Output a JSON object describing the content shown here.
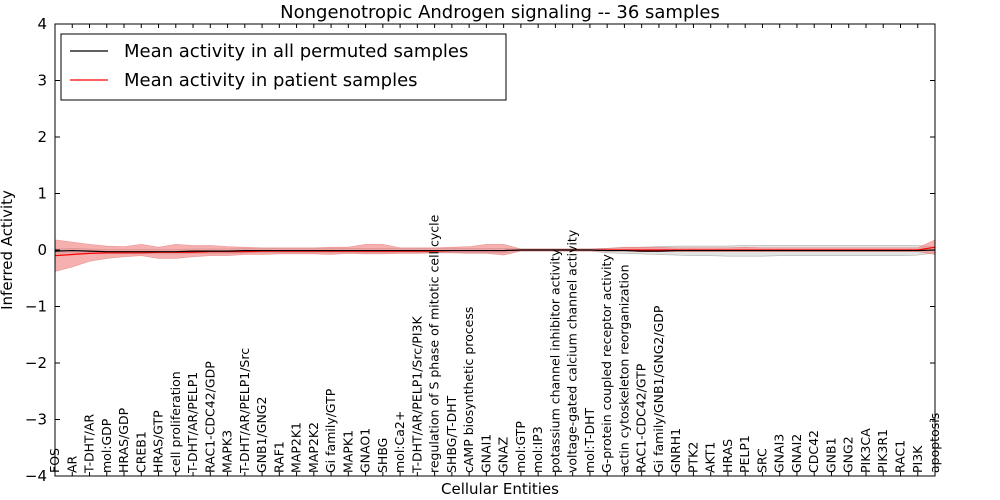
{
  "chart_data": {
    "type": "line",
    "title": "Nongenotropic Androgen signaling -- 36 samples",
    "xlabel": "Cellular Entities",
    "ylabel": "Inferred Activity",
    "ylim": [
      -4,
      4
    ],
    "yticks": [
      4,
      3,
      2,
      1,
      0,
      -1,
      -2,
      -3,
      -4
    ],
    "ytick_labels": [
      "4",
      "3",
      "2",
      "1",
      "0",
      "−1",
      "−2",
      "−3",
      "−4"
    ],
    "legend_position": "top-left",
    "categories": [
      "FOS",
      "AR",
      "T-DHT/AR",
      "mol:GDP",
      "HRAS/GDP",
      "CREB1",
      "HRAS/GTP",
      "cell proliferation",
      "T-DHT/AR/PELP1",
      "RAC1-CDC42/GDP",
      "MAPK3",
      "T-DHT/AR/PELP1/Src",
      "GNB1/GNG2",
      "RAF1",
      "MAP2K1",
      "MAP2K2",
      "Gi family/GTP",
      "MAPK1",
      "GNAO1",
      "SHBG",
      "mol:Ca2+",
      "T-DHT/AR/PELP1/Src/PI3K",
      "regulation of S phase of mitotic cell cycle",
      "SHBG/T-DHT",
      "cAMP biosynthetic process",
      "GNAI1",
      "GNAZ",
      "mol:GTP",
      "mol:IP3",
      "potassium channel inhibitor activity",
      "voltage-gated calcium channel activity",
      "mol:T-DHT",
      "G-protein coupled receptor activity",
      "actin cytoskeleton reorganization",
      "RAC1-CDC42/GTP",
      "Gi family/GNB1/GNG2/GDP",
      "GNRH1",
      "PTK2",
      "AKT1",
      "HRAS",
      "PELP1",
      "SRC",
      "GNAI3",
      "GNAI2",
      "CDC42",
      "GNB1",
      "GNG2",
      "PIK3CA",
      "PIK3R1",
      "RAC1",
      "PI3K",
      "apoptosis"
    ],
    "series": [
      {
        "name": "Mean activity in all permuted samples",
        "color": "#000000",
        "values": [
          -0.02,
          -0.01,
          -0.02,
          -0.03,
          -0.03,
          -0.03,
          -0.03,
          -0.03,
          -0.02,
          -0.02,
          -0.02,
          -0.01,
          -0.01,
          -0.01,
          -0.01,
          -0.01,
          -0.01,
          -0.01,
          -0.01,
          -0.01,
          -0.01,
          -0.01,
          -0.01,
          -0.01,
          -0.01,
          -0.01,
          -0.01,
          0.0,
          0.0,
          0.0,
          0.0,
          0.0,
          -0.01,
          -0.01,
          -0.02,
          -0.02,
          -0.01,
          -0.01,
          -0.01,
          -0.01,
          -0.01,
          -0.01,
          -0.01,
          -0.01,
          -0.01,
          -0.01,
          -0.01,
          -0.01,
          -0.01,
          -0.01,
          -0.01,
          0.0
        ],
        "band_low": [
          -0.06,
          -0.05,
          -0.06,
          -0.07,
          -0.07,
          -0.07,
          -0.07,
          -0.07,
          -0.06,
          -0.06,
          -0.06,
          -0.05,
          -0.05,
          -0.05,
          -0.05,
          -0.05,
          -0.05,
          -0.05,
          -0.05,
          -0.05,
          -0.05,
          -0.05,
          -0.05,
          -0.05,
          -0.05,
          -0.05,
          -0.05,
          -0.02,
          -0.02,
          -0.02,
          -0.02,
          -0.02,
          -0.05,
          -0.06,
          -0.07,
          -0.08,
          -0.09,
          -0.1,
          -0.1,
          -0.11,
          -0.11,
          -0.11,
          -0.1,
          -0.1,
          -0.1,
          -0.1,
          -0.1,
          -0.1,
          -0.1,
          -0.1,
          -0.09,
          -0.05
        ],
        "band_high": [
          0.02,
          0.03,
          0.02,
          0.01,
          0.01,
          0.01,
          0.01,
          0.01,
          0.02,
          0.02,
          0.02,
          0.03,
          0.03,
          0.03,
          0.03,
          0.03,
          0.03,
          0.03,
          0.03,
          0.03,
          0.03,
          0.03,
          0.03,
          0.03,
          0.03,
          0.03,
          0.03,
          0.02,
          0.02,
          0.02,
          0.02,
          0.02,
          0.03,
          0.04,
          0.05,
          0.06,
          0.07,
          0.07,
          0.07,
          0.07,
          0.08,
          0.08,
          0.08,
          0.08,
          0.08,
          0.08,
          0.08,
          0.08,
          0.08,
          0.08,
          0.08,
          0.05
        ]
      },
      {
        "name": "Mean activity in patient samples",
        "color": "#ff0000",
        "values": [
          -0.1,
          -0.08,
          -0.06,
          -0.05,
          -0.05,
          -0.05,
          -0.04,
          -0.04,
          -0.04,
          -0.03,
          -0.03,
          -0.03,
          -0.02,
          -0.02,
          -0.02,
          -0.02,
          -0.02,
          -0.02,
          -0.02,
          -0.02,
          -0.02,
          -0.02,
          -0.02,
          -0.01,
          -0.01,
          -0.01,
          -0.01,
          0.0,
          0.0,
          0.0,
          0.0,
          0.0,
          0.0,
          0.0,
          0.0,
          0.0,
          0.0,
          0.0,
          0.0,
          0.0,
          0.0,
          0.0,
          0.0,
          0.0,
          0.0,
          0.0,
          0.0,
          0.0,
          0.0,
          0.0,
          0.0,
          0.05
        ],
        "band_low": [
          -0.38,
          -0.3,
          -0.2,
          -0.15,
          -0.12,
          -0.1,
          -0.15,
          -0.15,
          -0.12,
          -0.1,
          -0.1,
          -0.08,
          -0.08,
          -0.07,
          -0.07,
          -0.07,
          -0.08,
          -0.06,
          -0.07,
          -0.07,
          -0.06,
          -0.06,
          -0.05,
          -0.05,
          -0.06,
          -0.06,
          -0.09,
          -0.02,
          -0.02,
          -0.02,
          -0.02,
          -0.02,
          -0.02,
          -0.02,
          -0.03,
          -0.03,
          -0.03,
          -0.03,
          -0.03,
          -0.03,
          -0.03,
          -0.03,
          -0.03,
          -0.03,
          -0.03,
          -0.03,
          -0.03,
          -0.03,
          -0.03,
          -0.03,
          -0.03,
          -0.08
        ],
        "band_high": [
          0.18,
          0.14,
          0.1,
          0.07,
          0.06,
          0.1,
          0.05,
          0.1,
          0.08,
          0.08,
          0.06,
          0.05,
          0.04,
          0.04,
          0.04,
          0.04,
          0.05,
          0.05,
          0.1,
          0.1,
          0.04,
          0.04,
          0.04,
          0.05,
          0.06,
          0.1,
          0.1,
          0.02,
          0.02,
          0.02,
          0.02,
          0.02,
          0.03,
          0.05,
          0.05,
          0.05,
          0.04,
          0.04,
          0.04,
          0.04,
          0.05,
          0.04,
          0.04,
          0.04,
          0.04,
          0.04,
          0.04,
          0.04,
          0.04,
          0.04,
          0.04,
          0.18
        ]
      }
    ]
  }
}
